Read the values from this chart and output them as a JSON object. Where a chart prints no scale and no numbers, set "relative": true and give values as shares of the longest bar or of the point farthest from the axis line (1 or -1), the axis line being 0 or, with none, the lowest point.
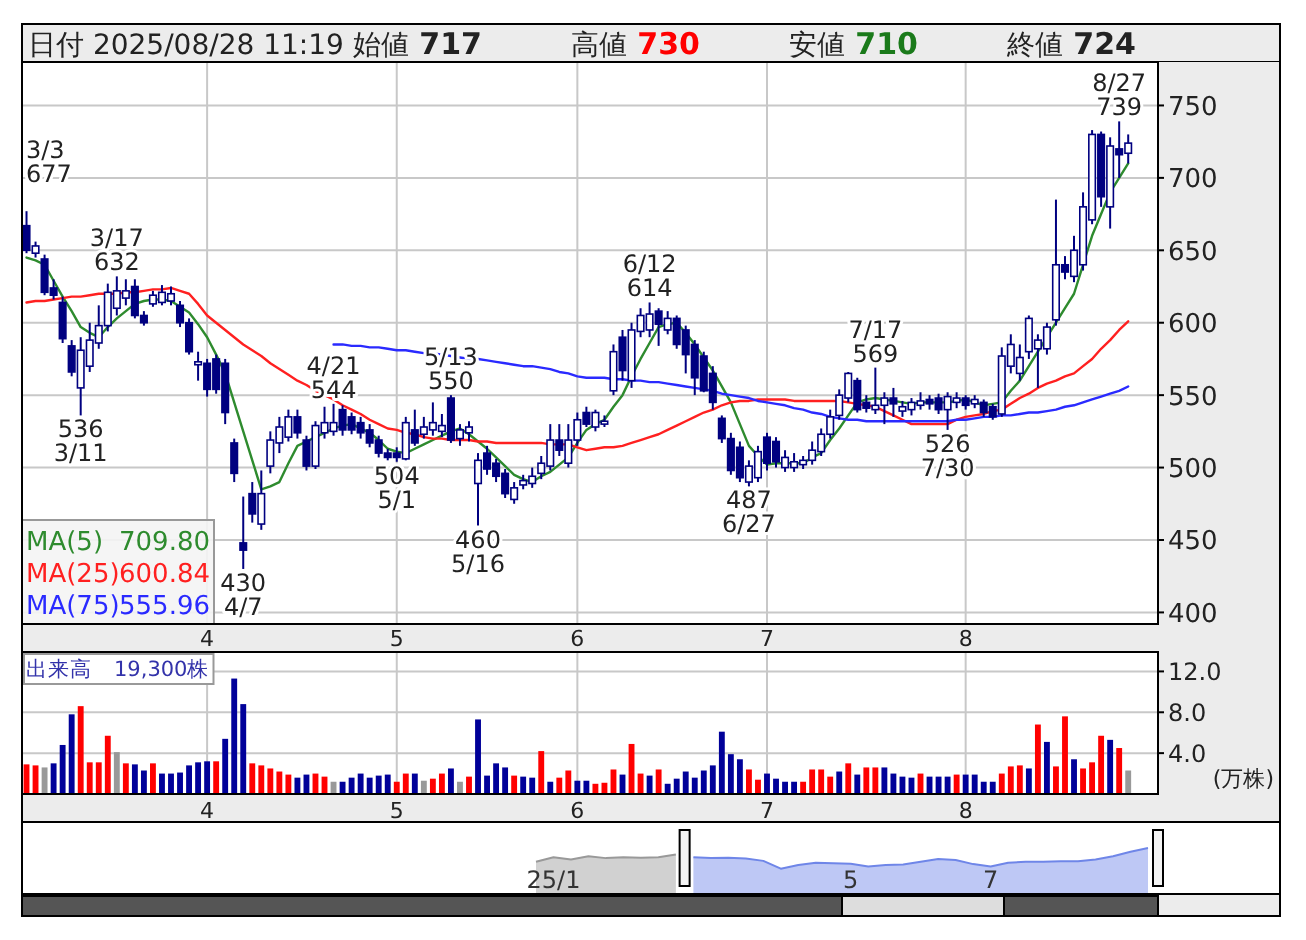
{
  "chart_data": [
    {
      "type": "candlestick",
      "title": "日付 2025/08/28 11:19 始値 717 高値 730 安値 710 終値 724",
      "categories": [
        null,
        null,
        null,
        null,
        null,
        null,
        null,
        null,
        null,
        null,
        null,
        null,
        null,
        null,
        null,
        null,
        null,
        null,
        null,
        null,
        "4",
        null,
        null,
        null,
        null,
        null,
        null,
        null,
        null,
        null,
        null,
        null,
        null,
        null,
        null,
        null,
        null,
        null,
        null,
        null,
        null,
        "5",
        null,
        null,
        null,
        null,
        null,
        null,
        null,
        null,
        null,
        null,
        null,
        null,
        null,
        null,
        null,
        null,
        null,
        null,
        null,
        "6",
        null,
        null,
        null,
        null,
        null,
        null,
        null,
        null,
        null,
        null,
        null,
        null,
        null,
        null,
        null,
        null,
        null,
        null,
        null,
        null,
        "7",
        null,
        null,
        null,
        null,
        null,
        null,
        null,
        null,
        null,
        null,
        null,
        null,
        null,
        null,
        null,
        null,
        null,
        null,
        null,
        null,
        null,
        "8",
        null,
        null,
        null,
        null,
        null,
        null,
        null,
        null,
        null,
        null,
        null,
        null,
        null,
        null,
        null,
        null,
        null,
        null
      ],
      "ohlc": [
        [
          667,
          677,
          648,
          650
        ],
        [
          648,
          656,
          645,
          653
        ],
        [
          644,
          647,
          619,
          621
        ],
        [
          624,
          630,
          616,
          619
        ],
        [
          614,
          618,
          586,
          589
        ],
        [
          584,
          588,
          563,
          566
        ],
        [
          555,
          590,
          536,
          581
        ],
        [
          570,
          600,
          566,
          588
        ],
        [
          586,
          612,
          582,
          598
        ],
        [
          598,
          627,
          594,
          621
        ],
        [
          610,
          632,
          605,
          622
        ],
        [
          617,
          630,
          612,
          622
        ],
        [
          625,
          630,
          603,
          605
        ],
        [
          605,
          608,
          598,
          600
        ],
        [
          613,
          622,
          611,
          619
        ],
        [
          614,
          626,
          612,
          621
        ],
        [
          615,
          625,
          612,
          620
        ],
        [
          612,
          615,
          597,
          600
        ],
        [
          600,
          603,
          578,
          580
        ],
        [
          571,
          580,
          560,
          573
        ],
        [
          572,
          575,
          549,
          554
        ],
        [
          575,
          578,
          551,
          554
        ],
        [
          572,
          575,
          530,
          538
        ],
        [
          517,
          520,
          490,
          496
        ],
        [
          448,
          480,
          430,
          443
        ],
        [
          482,
          490,
          462,
          468
        ],
        [
          461,
          498,
          457,
          482
        ],
        [
          501,
          525,
          496,
          519
        ],
        [
          517,
          535,
          510,
          528
        ],
        [
          521,
          540,
          518,
          535
        ],
        [
          535,
          540,
          520,
          524
        ],
        [
          519,
          522,
          498,
          501
        ],
        [
          501,
          532,
          499,
          529
        ],
        [
          524,
          542,
          520,
          531
        ],
        [
          525,
          544,
          522,
          531
        ],
        [
          540,
          543,
          522,
          526
        ],
        [
          535,
          538,
          523,
          526
        ],
        [
          531,
          535,
          520,
          524
        ],
        [
          526,
          530,
          514,
          517
        ],
        [
          519,
          522,
          507,
          510
        ],
        [
          510,
          513,
          505,
          507
        ],
        [
          510,
          514,
          504,
          507
        ],
        [
          506,
          535,
          505,
          531
        ],
        [
          526,
          540,
          515,
          517
        ],
        [
          523,
          535,
          520,
          528
        ],
        [
          526,
          545,
          522,
          531
        ],
        [
          525,
          537,
          521,
          529
        ],
        [
          548,
          550,
          517,
          519
        ],
        [
          520,
          530,
          515,
          526
        ],
        [
          524,
          532,
          518,
          528
        ],
        [
          489,
          510,
          460,
          505
        ],
        [
          510,
          515,
          495,
          499
        ],
        [
          503,
          506,
          490,
          494
        ],
        [
          496,
          499,
          479,
          482
        ],
        [
          478,
          490,
          475,
          486
        ],
        [
          488,
          495,
          485,
          491
        ],
        [
          489,
          500,
          486,
          494
        ],
        [
          496,
          508,
          492,
          503
        ],
        [
          501,
          530,
          498,
          519
        ],
        [
          519,
          530,
          508,
          512
        ],
        [
          503,
          530,
          500,
          519
        ],
        [
          519,
          538,
          515,
          533
        ],
        [
          538,
          542,
          528,
          530
        ],
        [
          528,
          540,
          525,
          538
        ],
        [
          530,
          536,
          528,
          532
        ],
        [
          553,
          585,
          550,
          580
        ],
        [
          590,
          595,
          560,
          567
        ],
        [
          560,
          600,
          555,
          595
        ],
        [
          594,
          610,
          590,
          605
        ],
        [
          595,
          614,
          590,
          606
        ],
        [
          608,
          610,
          584,
          599
        ],
        [
          595,
          608,
          592,
          603
        ],
        [
          603,
          605,
          582,
          585
        ],
        [
          595,
          598,
          565,
          578
        ],
        [
          585,
          588,
          550,
          562
        ],
        [
          577,
          580,
          552,
          553
        ],
        [
          565,
          570,
          540,
          545
        ],
        [
          534,
          536,
          517,
          520
        ],
        [
          520,
          524,
          495,
          498
        ],
        [
          514,
          518,
          490,
          493
        ],
        [
          490,
          505,
          487,
          501
        ],
        [
          493,
          515,
          490,
          511
        ],
        [
          521,
          524,
          498,
          503
        ],
        [
          518,
          521,
          500,
          504
        ],
        [
          500,
          512,
          497,
          507
        ],
        [
          500,
          510,
          497,
          504
        ],
        [
          502,
          508,
          499,
          505
        ],
        [
          505,
          518,
          502,
          512
        ],
        [
          511,
          527,
          508,
          523
        ],
        [
          523,
          540,
          520,
          535
        ],
        [
          536,
          554,
          533,
          550
        ],
        [
          548,
          566,
          545,
          565
        ],
        [
          560,
          562,
          538,
          540
        ],
        [
          545,
          550,
          538,
          541
        ],
        [
          540,
          569,
          537,
          543
        ],
        [
          543,
          552,
          530,
          548
        ],
        [
          548,
          555,
          535,
          544
        ],
        [
          539,
          546,
          535,
          542
        ],
        [
          540,
          548,
          536,
          545
        ],
        [
          543,
          552,
          540,
          546
        ],
        [
          547,
          550,
          540,
          544
        ],
        [
          548,
          551,
          537,
          540
        ],
        [
          540,
          552,
          526,
          549
        ],
        [
          545,
          552,
          541,
          548
        ],
        [
          548,
          550,
          540,
          543
        ],
        [
          544,
          550,
          541,
          547
        ],
        [
          545,
          547,
          535,
          538
        ],
        [
          542,
          544,
          533,
          535
        ],
        [
          537,
          583,
          535,
          577
        ],
        [
          570,
          592,
          565,
          585
        ],
        [
          565,
          585,
          560,
          576
        ],
        [
          580,
          605,
          575,
          603
        ],
        [
          582,
          592,
          555,
          588
        ],
        [
          582,
          600,
          578,
          597
        ],
        [
          602,
          685,
          598,
          640
        ],
        [
          640,
          646,
          630,
          635
        ],
        [
          632,
          660,
          628,
          650
        ],
        [
          640,
          690,
          636,
          680
        ],
        [
          671,
          733,
          668,
          730
        ],
        [
          730,
          732,
          680,
          687
        ],
        [
          680,
          728,
          665,
          722
        ],
        [
          720,
          739,
          700,
          716
        ],
        [
          717,
          730,
          710,
          724
        ]
      ],
      "series": [
        {
          "name": "MA(5)",
          "type": "line",
          "color": "#2e8b2e",
          "values": [
            645,
            643,
            640,
            629,
            618,
            608,
            597,
            593,
            590,
            597,
            603,
            608,
            613,
            615,
            616,
            616,
            615,
            611,
            607,
            599,
            590,
            578,
            565,
            545,
            525,
            505,
            485,
            487,
            490,
            503,
            515,
            518,
            521,
            524,
            527,
            529,
            530,
            527,
            524,
            519,
            513,
            511,
            510,
            513,
            516,
            519,
            522,
            525,
            527,
            523,
            518,
            513,
            507,
            501,
            495,
            492,
            490,
            494,
            497,
            502,
            507,
            517,
            526,
            530,
            533,
            542,
            550,
            563,
            575,
            586,
            597,
            599,
            600,
            593,
            585,
            576,
            567,
            556,
            545,
            530,
            515,
            508,
            502,
            503,
            503,
            503,
            503,
            507,
            510,
            519,
            527,
            536,
            545,
            547,
            548,
            547,
            546,
            545,
            544,
            545,
            545,
            545,
            545,
            546,
            547,
            545,
            543,
            544,
            545,
            553,
            560,
            570,
            580,
            590,
            600,
            610,
            620,
            640,
            660,
            675,
            690,
            700,
            710
          ]
        },
        {
          "name": "MA(25)",
          "type": "line",
          "color": "#ff2020",
          "values": [
            614,
            615,
            615,
            616,
            617,
            618,
            618,
            619,
            620,
            620,
            620,
            621,
            621,
            622,
            623,
            623,
            624,
            622,
            620,
            613,
            605,
            600,
            595,
            590,
            585,
            581,
            577,
            572,
            568,
            564,
            560,
            557,
            553,
            550,
            547,
            543,
            540,
            537,
            533,
            530,
            527,
            526,
            524,
            523,
            521,
            520,
            520,
            519,
            519,
            519,
            518,
            518,
            517,
            517,
            517,
            517,
            517,
            517,
            516,
            516,
            516,
            514,
            512,
            513,
            514,
            514,
            515,
            517,
            519,
            521,
            523,
            526,
            529,
            532,
            535,
            538,
            540,
            543,
            545,
            546,
            546,
            547,
            547,
            547,
            547,
            546,
            546,
            546,
            546,
            546,
            546,
            545,
            544,
            543,
            542,
            539,
            536,
            533,
            530,
            530,
            530,
            530,
            530,
            533,
            535,
            536,
            537,
            539,
            540,
            544,
            548,
            551,
            555,
            558,
            560,
            563,
            565,
            570,
            575,
            582,
            588,
            595,
            601
          ]
        },
        {
          "name": "MA(75)",
          "type": "line",
          "color": "#2a2aff",
          "values": [
            null,
            null,
            null,
            null,
            null,
            null,
            null,
            null,
            null,
            null,
            null,
            null,
            null,
            null,
            null,
            null,
            null,
            null,
            null,
            null,
            null,
            null,
            null,
            null,
            null,
            null,
            null,
            null,
            null,
            null,
            null,
            null,
            null,
            null,
            585,
            585,
            584,
            584,
            583,
            583,
            582,
            581,
            581,
            580,
            579,
            579,
            578,
            577,
            576,
            575,
            575,
            574,
            573,
            572,
            571,
            570,
            570,
            569,
            568,
            566,
            565,
            563,
            562,
            562,
            562,
            561,
            561,
            560,
            560,
            559,
            559,
            558,
            557,
            556,
            555,
            554,
            553,
            551,
            550,
            549,
            548,
            546,
            545,
            544,
            543,
            541,
            540,
            538,
            537,
            535,
            534,
            533,
            533,
            532,
            532,
            532,
            532,
            532,
            532,
            532,
            532,
            532,
            532,
            533,
            533,
            534,
            535,
            535,
            536,
            536,
            537,
            538,
            538,
            539,
            540,
            542,
            543,
            545,
            547,
            549,
            551,
            553,
            556
          ]
        }
      ],
      "ylim": [
        392,
        780
      ],
      "yticks": [
        400,
        450,
        500,
        550,
        600,
        650,
        700,
        750
      ],
      "grid": true,
      "legend": "bottom left",
      "annotations": [
        "709.80",
        "600.84",
        "555.96",
        "3/3\n677",
        {
          "text": "536\n3/11",
          "y": 536
        },
        {
          "text": "3/17\n632",
          "y": 632
        },
        {
          "text": "430\n4/7",
          "y": 430
        },
        {
          "text": "4/21\n544",
          "y": 544
        },
        {
          "text": "504\n5/1",
          "y": 504
        },
        {
          "text": "5/13\n550",
          "y": 550
        },
        {
          "text": "460\n5/16",
          "y": 460
        },
        {
          "text": "6/12\n614",
          "y": 614
        },
        {
          "text": "487\n6/27",
          "y": 487
        },
        {
          "text": "7/17\n569",
          "y": 569
        },
        {
          "text": "526\n7/30",
          "y": 526
        },
        {
          "text": "8/27\n739",
          "y": 739
        }
      ]
    },
    {
      "type": "bar",
      "title": "出来高　19,300株",
      "categories": [
        null,
        null,
        null,
        null,
        null,
        null,
        null,
        null,
        null,
        null,
        null,
        null,
        null,
        null,
        null,
        null,
        null,
        null,
        null,
        null,
        "4",
        null,
        null,
        null,
        null,
        null,
        null,
        null,
        null,
        null,
        null,
        null,
        null,
        null,
        null,
        null,
        null,
        null,
        null,
        null,
        null,
        "5",
        null,
        null,
        null,
        null,
        null,
        null,
        null,
        null,
        null,
        null,
        null,
        null,
        null,
        null,
        null,
        null,
        null,
        null,
        null,
        "6",
        null,
        null,
        null,
        null,
        null,
        null,
        null,
        null,
        null,
        null,
        null,
        null,
        null,
        null,
        null,
        null,
        null,
        null,
        null,
        null,
        "7",
        null,
        null,
        null,
        null,
        null,
        null,
        null,
        null,
        null,
        null,
        null,
        null,
        null,
        null,
        null,
        null,
        null,
        null,
        null,
        null,
        null,
        "8",
        null,
        null,
        null,
        null,
        null,
        null,
        null,
        null,
        null,
        null,
        null,
        null,
        null,
        null,
        null,
        null,
        null,
        null
      ],
      "values": [
        2.9,
        2.8,
        2.6,
        3.0,
        4.8,
        7.8,
        8.6,
        3.1,
        3.1,
        5.7,
        4.1,
        3.0,
        2.9,
        2.3,
        3.0,
        2.0,
        2.0,
        2.1,
        2.8,
        3.1,
        3.2,
        3.2,
        5.4,
        11.3,
        8.8,
        3.0,
        2.8,
        2.5,
        2.2,
        1.9,
        1.6,
        1.9,
        2.0,
        1.7,
        1.2,
        1.2,
        1.6,
        2.0,
        1.6,
        1.8,
        1.9,
        1.2,
        2.0,
        2.0,
        1.3,
        1.5,
        2.0,
        2.5,
        1.2,
        1.7,
        7.3,
        1.8,
        3.0,
        2.6,
        1.8,
        1.7,
        1.6,
        4.2,
        1.2,
        1.6,
        2.3,
        1.3,
        1.3,
        1.0,
        1.1,
        2.4,
        1.9,
        4.9,
        2.0,
        1.8,
        2.4,
        1.0,
        1.5,
        2.2,
        1.6,
        2.3,
        2.8,
        6.1,
        3.9,
        3.4,
        2.4,
        1.4,
        2.0,
        1.5,
        1.2,
        1.2,
        1.2,
        2.4,
        2.4,
        1.7,
        2.2,
        3.0,
        1.9,
        2.6,
        2.6,
        2.6,
        2.0,
        1.7,
        1.6,
        2.0,
        1.7,
        1.7,
        1.7,
        1.9,
        1.9,
        1.9,
        1.2,
        1.2,
        2.0,
        2.7,
        2.8,
        2.5,
        6.8,
        5.1,
        2.7,
        7.6,
        3.4,
        2.5,
        3.1,
        5.7,
        5.3,
        4.5,
        2.3
      ],
      "colors": [
        "#ff0000",
        "#ff0000",
        "#999999",
        "#000099",
        "#000099",
        "#000099",
        "#ff0000",
        "#ff0000",
        "#ff0000",
        "#ff0000",
        "#999999",
        "#ff0000",
        "#000099",
        "#000099",
        "#ff0000",
        "#000099",
        "#000099",
        "#000099",
        "#000099",
        "#000099",
        "#000099",
        "#ff0000",
        "#000099",
        "#000099",
        "#000099",
        "#ff0000",
        "#ff0000",
        "#ff0000",
        "#ff0000",
        "#ff0000",
        "#000099",
        "#000099",
        "#ff0000",
        "#ff0000",
        "#999999",
        "#000099",
        "#000099",
        "#000099",
        "#000099",
        "#000099",
        "#000099",
        "#ff0000",
        "#ff0000",
        "#000099",
        "#999999",
        "#ff0000",
        "#ff0000",
        "#000099",
        "#999999",
        "#ff0000",
        "#000099",
        "#000099",
        "#000099",
        "#000099",
        "#ff0000",
        "#000099",
        "#000099",
        "#ff0000",
        "#000099",
        "#ff0000",
        "#ff0000",
        "#000099",
        "#000099",
        "#ff0000",
        "#ff0000",
        "#ff0000",
        "#000099",
        "#ff0000",
        "#ff0000",
        "#000099",
        "#ff0000",
        "#000099",
        "#000099",
        "#000099",
        "#000099",
        "#000099",
        "#000099",
        "#000099",
        "#000099",
        "#000099",
        "#ff0000",
        "#ff0000",
        "#000099",
        "#000099",
        "#000099",
        "#000099",
        "#ff0000",
        "#ff0000",
        "#ff0000",
        "#ff0000",
        "#000099",
        "#ff0000",
        "#000099",
        "#ff0000",
        "#ff0000",
        "#000099",
        "#000099",
        "#000099",
        "#000099",
        "#ff0000",
        "#000099",
        "#000099",
        "#000099",
        "#ff0000",
        "#000099",
        "#000099",
        "#000099",
        "#000099",
        "#ff0000",
        "#ff0000",
        "#ff0000",
        "#000099",
        "#ff0000",
        "#000099",
        "#ff0000",
        "#ff0000",
        "#000099",
        "#ff0000",
        "#ff0000",
        "#ff0000",
        "#000099",
        "#ff0000",
        "#999999"
      ],
      "ylim": [
        0,
        13.9
      ],
      "yticks": [
        {
          "value": 4,
          "label": "4.0"
        },
        {
          "value": 8,
          "label": "8.0"
        },
        {
          "value": 12,
          "label": "12.0"
        }
      ],
      "grid": true,
      "annotations": [
        "(万株)"
      ]
    },
    {
      "type": "area",
      "relative": true,
      "categories": [
        null,
        "25/1",
        null,
        null,
        null,
        null,
        null,
        null,
        null,
        null,
        null,
        null,
        null,
        null,
        null,
        null,
        null,
        null,
        "5",
        null,
        null,
        null,
        null,
        null,
        null,
        null,
        "7",
        null,
        null,
        null,
        null,
        null,
        null,
        null,
        null,
        null
      ],
      "series": [
        {
          "color": "#999999",
          "values": [
            0.7,
            0.8,
            0.75,
            0.82,
            0.78,
            0.8,
            0.79,
            0.8,
            0.86,
            null,
            null,
            null,
            null,
            null,
            null,
            null,
            null,
            null,
            null,
            null,
            null,
            null,
            null,
            null,
            null,
            null,
            null,
            null,
            null,
            null,
            null,
            null,
            null,
            null,
            null,
            null
          ]
        },
        {
          "color": "#6f86e8",
          "values": [
            null,
            null,
            null,
            null,
            null,
            null,
            null,
            null,
            null,
            0.8,
            0.78,
            0.79,
            0.77,
            0.72,
            0.55,
            0.63,
            0.68,
            0.67,
            0.66,
            0.6,
            0.63,
            0.64,
            0.7,
            0.76,
            0.74,
            0.65,
            0.6,
            0.68,
            0.7,
            0.7,
            0.71,
            0.71,
            0.75,
            0.82,
            0.92,
            1.0
          ]
        }
      ]
    }
  ]
}
